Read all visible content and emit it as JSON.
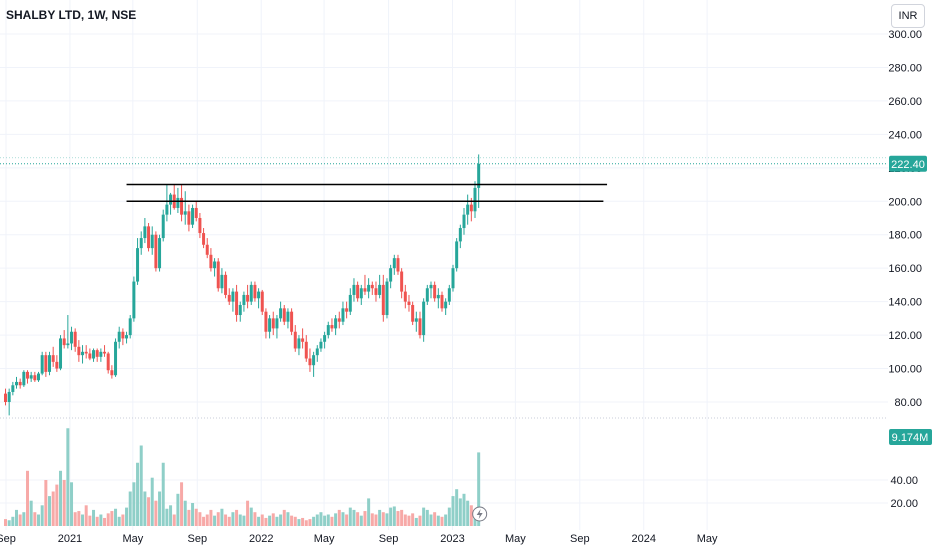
{
  "header": {
    "title": "SHALBY LTD, 1W, NSE",
    "currency": "INR"
  },
  "colors": {
    "up": "#26a69a",
    "down": "#ef5350",
    "up_volume": "#8fcfc8",
    "down_volume": "#f7a9a7",
    "grid": "#f0f3fa",
    "line": "#000000",
    "badge": "#26a69a"
  },
  "chart_data": {
    "type": "candlestick",
    "title": "SHALBY LTD, 1W, NSE",
    "price_axis": {
      "ylim": [
        70,
        310
      ],
      "ticks": [
        "300.00",
        "280.00",
        "260.00",
        "240.00",
        "220.00",
        "200.00",
        "180.00",
        "160.00",
        "140.00",
        "120.00",
        "100.00",
        "80.00"
      ]
    },
    "volume_axis": {
      "ylim": [
        0,
        80
      ],
      "unit": "M",
      "ticks": [
        "40.00",
        "20.00"
      ]
    },
    "time_axis": {
      "start_date": "2020-08-31",
      "ticks": [
        {
          "label": "Sep",
          "date": "2020-09-01"
        },
        {
          "label": "2021",
          "date": "2021-01-01"
        },
        {
          "label": "May",
          "date": "2021-05-01"
        },
        {
          "label": "Sep",
          "date": "2021-09-01"
        },
        {
          "label": "2022",
          "date": "2022-01-01"
        },
        {
          "label": "May",
          "date": "2022-05-01"
        },
        {
          "label": "Sep",
          "date": "2022-09-01"
        },
        {
          "label": "2023",
          "date": "2023-01-01"
        },
        {
          "label": "May",
          "date": "2023-05-01"
        },
        {
          "label": "Sep",
          "date": "2023-09-01"
        },
        {
          "label": "2024",
          "date": "2024-01-01"
        },
        {
          "label": "May",
          "date": "2024-05-01"
        }
      ]
    },
    "last_price": "222.40",
    "last_volume": "9.174M",
    "horizontal_lines": [
      {
        "price": 210,
        "from": "2021-04-19",
        "to": "2023-10-23"
      },
      {
        "price": 200,
        "from": "2021-04-19",
        "to": "2023-10-16"
      }
    ],
    "candles": [
      [
        85,
        88,
        78,
        80,
        6
      ],
      [
        80,
        88,
        72,
        86,
        5
      ],
      [
        86,
        92,
        84,
        90,
        8
      ],
      [
        90,
        95,
        88,
        92,
        14
      ],
      [
        92,
        94,
        88,
        90,
        10
      ],
      [
        90,
        99,
        89,
        98,
        12
      ],
      [
        98,
        99,
        91,
        94,
        48
      ],
      [
        94,
        98,
        92,
        96,
        22
      ],
      [
        96,
        98,
        92,
        93,
        12
      ],
      [
        93,
        98,
        92,
        97,
        10
      ],
      [
        97,
        110,
        96,
        108,
        18
      ],
      [
        108,
        110,
        95,
        98,
        40
      ],
      [
        98,
        110,
        96,
        108,
        26
      ],
      [
        108,
        113,
        101,
        104,
        30
      ],
      [
        104,
        108,
        98,
        100,
        36
      ],
      [
        100,
        120,
        99,
        118,
        48
      ],
      [
        118,
        123,
        112,
        114,
        40
      ],
      [
        114,
        132,
        112,
        115,
        85
      ],
      [
        115,
        125,
        111,
        122,
        38
      ],
      [
        122,
        124,
        110,
        113,
        12
      ],
      [
        113,
        117,
        104,
        108,
        13
      ],
      [
        108,
        114,
        103,
        110,
        10
      ],
      [
        110,
        114,
        106,
        109,
        18
      ],
      [
        109,
        112,
        105,
        106,
        9
      ],
      [
        106,
        112,
        104,
        111,
        14
      ],
      [
        111,
        112,
        104,
        107,
        8
      ],
      [
        107,
        112,
        104,
        110,
        10
      ],
      [
        110,
        114,
        107,
        109,
        7
      ],
      [
        109,
        110,
        97,
        99,
        11
      ],
      [
        99,
        102,
        94,
        96,
        13
      ],
      [
        96,
        118,
        95,
        116,
        15
      ],
      [
        116,
        125,
        112,
        122,
        8
      ],
      [
        122,
        124,
        114,
        118,
        10
      ],
      [
        118,
        122,
        115,
        120,
        16
      ],
      [
        120,
        132,
        118,
        130,
        30
      ],
      [
        130,
        155,
        128,
        152,
        38
      ],
      [
        152,
        178,
        150,
        172,
        55
      ],
      [
        172,
        182,
        168,
        178,
        70
      ],
      [
        178,
        190,
        175,
        185,
        30
      ],
      [
        185,
        187,
        170,
        172,
        25
      ],
      [
        172,
        185,
        168,
        180,
        42
      ],
      [
        180,
        182,
        158,
        160,
        22
      ],
      [
        160,
        180,
        158,
        178,
        30
      ],
      [
        178,
        195,
        176,
        192,
        55
      ],
      [
        192,
        210,
        188,
        198,
        15
      ],
      [
        198,
        205,
        192,
        204,
        18
      ],
      [
        204,
        210,
        195,
        196,
        10
      ],
      [
        196,
        208,
        193,
        202,
        28
      ],
      [
        202,
        210,
        188,
        192,
        38
      ],
      [
        192,
        206,
        186,
        194,
        22
      ],
      [
        194,
        198,
        182,
        186,
        14
      ],
      [
        186,
        198,
        184,
        196,
        20
      ],
      [
        196,
        200,
        188,
        190,
        15
      ],
      [
        190,
        193,
        178,
        181,
        12
      ],
      [
        181,
        184,
        172,
        174,
        8
      ],
      [
        174,
        178,
        166,
        168,
        10
      ],
      [
        168,
        172,
        158,
        160,
        14
      ],
      [
        160,
        166,
        155,
        164,
        9
      ],
      [
        164,
        166,
        146,
        148,
        12
      ],
      [
        148,
        160,
        145,
        156,
        15
      ],
      [
        156,
        158,
        142,
        144,
        10
      ],
      [
        144,
        148,
        138,
        140,
        8
      ],
      [
        140,
        148,
        134,
        146,
        12
      ],
      [
        146,
        150,
        128,
        132,
        14
      ],
      [
        132,
        140,
        128,
        138,
        10
      ],
      [
        138,
        146,
        134,
        144,
        9
      ],
      [
        144,
        150,
        136,
        140,
        22
      ],
      [
        140,
        152,
        138,
        150,
        16
      ],
      [
        150,
        152,
        140,
        142,
        12
      ],
      [
        142,
        148,
        136,
        146,
        8
      ],
      [
        146,
        147,
        132,
        134,
        10
      ],
      [
        134,
        136,
        118,
        122,
        7
      ],
      [
        122,
        132,
        118,
        130,
        9
      ],
      [
        130,
        134,
        120,
        124,
        11
      ],
      [
        124,
        132,
        118,
        130,
        8
      ],
      [
        130,
        140,
        128,
        136,
        10
      ],
      [
        136,
        138,
        126,
        128,
        14
      ],
      [
        128,
        136,
        124,
        134,
        12
      ],
      [
        134,
        136,
        120,
        122,
        9
      ],
      [
        122,
        126,
        110,
        112,
        8
      ],
      [
        112,
        120,
        108,
        118,
        6
      ],
      [
        118,
        124,
        112,
        116,
        7
      ],
      [
        116,
        120,
        104,
        106,
        5
      ],
      [
        106,
        112,
        98,
        102,
        6
      ],
      [
        102,
        110,
        95,
        108,
        8
      ],
      [
        108,
        114,
        104,
        112,
        10
      ],
      [
        112,
        118,
        110,
        116,
        12
      ],
      [
        116,
        122,
        112,
        120,
        9
      ],
      [
        120,
        128,
        118,
        126,
        10
      ],
      [
        126,
        130,
        122,
        124,
        8
      ],
      [
        124,
        132,
        120,
        130,
        11
      ],
      [
        130,
        134,
        124,
        128,
        14
      ],
      [
        128,
        140,
        126,
        136,
        12
      ],
      [
        136,
        140,
        130,
        134,
        10
      ],
      [
        134,
        148,
        132,
        144,
        16
      ],
      [
        144,
        154,
        140,
        150,
        14
      ],
      [
        150,
        152,
        140,
        142,
        12
      ],
      [
        142,
        150,
        138,
        148,
        9
      ],
      [
        148,
        156,
        144,
        146,
        13
      ],
      [
        146,
        154,
        142,
        150,
        24
      ],
      [
        150,
        152,
        144,
        148,
        11
      ],
      [
        148,
        152,
        140,
        144,
        10
      ],
      [
        144,
        156,
        142,
        150,
        14
      ],
      [
        150,
        156,
        128,
        132,
        12
      ],
      [
        132,
        154,
        130,
        152,
        11
      ],
      [
        152,
        162,
        148,
        160,
        16
      ],
      [
        160,
        168,
        156,
        166,
        17
      ],
      [
        166,
        168,
        156,
        158,
        13
      ],
      [
        158,
        160,
        142,
        146,
        14
      ],
      [
        146,
        150,
        136,
        140,
        10
      ],
      [
        140,
        144,
        134,
        138,
        9
      ],
      [
        138,
        140,
        126,
        128,
        11
      ],
      [
        128,
        134,
        122,
        130,
        7
      ],
      [
        130,
        134,
        118,
        120,
        9
      ],
      [
        120,
        142,
        116,
        140,
        16
      ],
      [
        140,
        150,
        138,
        148,
        14
      ],
      [
        148,
        152,
        142,
        150,
        10
      ],
      [
        150,
        152,
        140,
        142,
        12
      ],
      [
        142,
        148,
        136,
        144,
        9
      ],
      [
        144,
        146,
        134,
        136,
        8
      ],
      [
        136,
        142,
        132,
        140,
        10
      ],
      [
        140,
        150,
        138,
        148,
        16
      ],
      [
        148,
        162,
        146,
        160,
        26
      ],
      [
        160,
        178,
        158,
        176,
        32
      ],
      [
        176,
        186,
        172,
        184,
        24
      ],
      [
        184,
        196,
        180,
        192,
        28
      ],
      [
        192,
        204,
        186,
        198,
        22
      ],
      [
        198,
        202,
        188,
        194,
        18
      ],
      [
        194,
        212,
        190,
        208,
        12
      ],
      [
        208,
        228,
        196,
        222.4,
        64
      ]
    ]
  }
}
